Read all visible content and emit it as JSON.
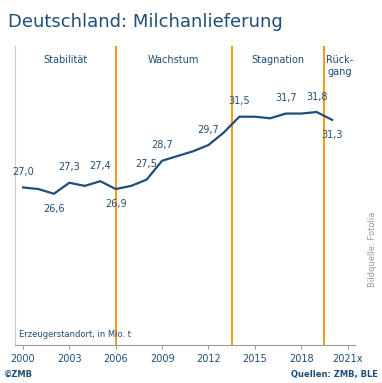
{
  "chart_data": {
    "type": "line",
    "title": "Deutschland: Milchanlieferung",
    "y_label": "Erzeugerstandort, in Mio. t",
    "x": [
      2000,
      2001,
      2002,
      2003,
      2004,
      2005,
      2006,
      2007,
      2008,
      2009,
      2010,
      2011,
      2012,
      2013,
      2014,
      2015,
      2016,
      2017,
      2018,
      2019,
      2020
    ],
    "values": [
      27.0,
      26.9,
      26.6,
      27.3,
      27.1,
      27.4,
      26.9,
      27.1,
      27.5,
      28.7,
      29.0,
      29.3,
      29.7,
      30.5,
      31.5,
      31.5,
      31.4,
      31.7,
      31.7,
      31.8,
      31.3
    ],
    "value_labels": [
      "27,0",
      null,
      "26,6",
      "27,3",
      null,
      "27,4",
      "26,9",
      null,
      "27,5",
      "28,7",
      null,
      null,
      "29,7",
      null,
      "31,5",
      null,
      null,
      "31,7",
      null,
      "31,8",
      "31,3"
    ],
    "data_labels": true,
    "color": "#1f4e79",
    "xlim": [
      1999.5,
      2021.5
    ],
    "xticks": [
      2000,
      2003,
      2006,
      2009,
      2012,
      2015,
      2018,
      {
        "value": 2021,
        "label": "2021x"
      }
    ],
    "ylim": [
      17,
      36
    ],
    "tick_labels": "x",
    "grid": false,
    "phase_labels": [
      "Stabilität",
      "Wachstum",
      "Stagnation",
      "Rück-\ngang"
    ],
    "phase_boundaries": [
      2006,
      2013.5,
      2019.5
    ],
    "phase_color": "#f39200"
  },
  "footer_left": "©ZMB",
  "footer_right": "Quellen: ZMB, BLE",
  "image_credit": "Bildquelle: Fotolia"
}
